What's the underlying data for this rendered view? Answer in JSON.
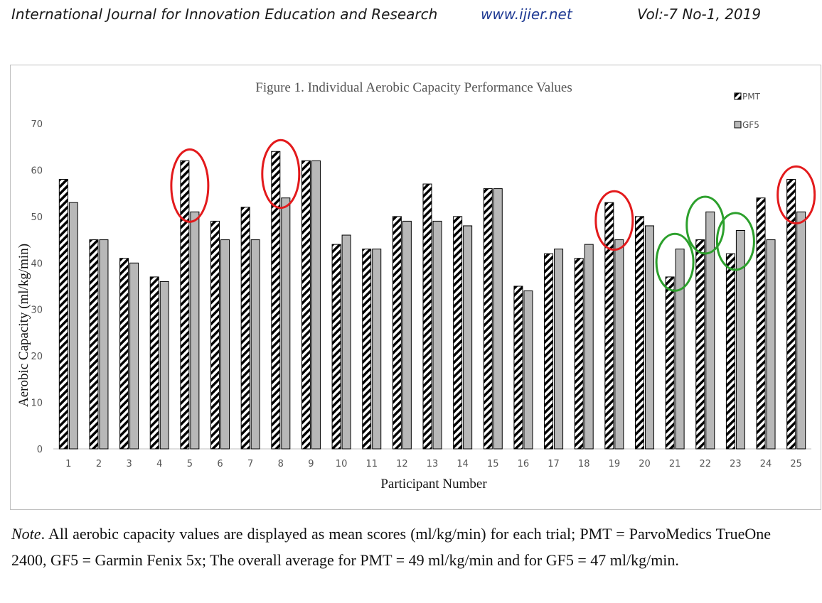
{
  "header": {
    "journal": "International Journal for Innovation Education and Research",
    "url": "www.ijier.net",
    "volume": "Vol:-7 No-1, 2019"
  },
  "chart_data": {
    "type": "bar",
    "title": "Figure 1. Individual Aerobic Capacity Performance Values",
    "xlabel": "Participant Number",
    "ylabel": "Aerobic Capacity (ml/kg/min)",
    "ylim": [
      0,
      70
    ],
    "yticks": [
      0,
      10,
      20,
      30,
      40,
      50,
      60,
      70
    ],
    "categories": [
      "1",
      "2",
      "3",
      "4",
      "5",
      "6",
      "7",
      "8",
      "9",
      "10",
      "11",
      "12",
      "13",
      "14",
      "15",
      "16",
      "17",
      "18",
      "19",
      "20",
      "21",
      "22",
      "23",
      "24",
      "25"
    ],
    "series": [
      {
        "name": "PMT",
        "pattern": "diagonal-hatch",
        "color": "#000000",
        "values": [
          58,
          45,
          41,
          37,
          62,
          49,
          52,
          64,
          62,
          44,
          43,
          50,
          57,
          50,
          56,
          35,
          42,
          41,
          53,
          50,
          37,
          45,
          42,
          54,
          58
        ]
      },
      {
        "name": "GF5",
        "pattern": "solid",
        "color": "#b8b8b8",
        "values": [
          53,
          45,
          40,
          36,
          51,
          45,
          45,
          54,
          62,
          46,
          43,
          49,
          49,
          48,
          56,
          34,
          43,
          44,
          45,
          48,
          43,
          51,
          47,
          45,
          51
        ]
      }
    ],
    "legend_position": "top-right",
    "grid": false,
    "annotations": [
      {
        "type": "ellipse",
        "color": "#e31a1c",
        "participants": [
          "5",
          "8",
          "19",
          "25"
        ]
      },
      {
        "type": "ellipse",
        "color": "#2ca02c",
        "participants": [
          "21",
          "22",
          "23"
        ]
      }
    ]
  },
  "note": {
    "label": "Note",
    "text": ". All aerobic capacity values are displayed as mean scores (ml/kg/min) for each trial; PMT = ParvoMedics TrueOne 2400, GF5 = Garmin Fenix 5x; The overall average for PMT = 49 ml/kg/min and for GF5 = 47 ml/kg/min."
  }
}
